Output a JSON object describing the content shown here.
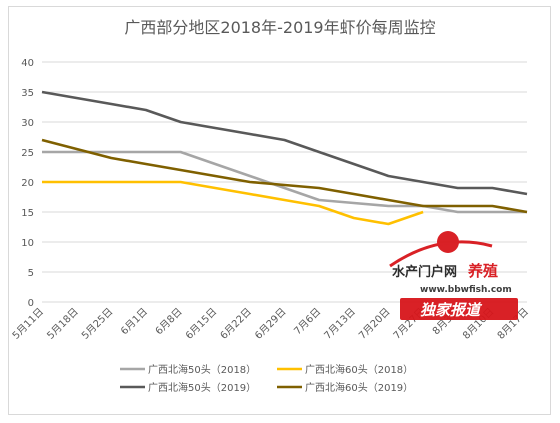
{
  "chart_data": {
    "type": "line",
    "title": "广西部分地区2018年-2019年虾价每周监控",
    "xlabel": "",
    "ylabel": "",
    "ylim": [
      0,
      40
    ],
    "yticks": [
      0,
      5,
      10,
      15,
      20,
      25,
      30,
      35,
      40
    ],
    "grid": true,
    "legend_position": "bottom",
    "categories": [
      "5月11日",
      "5月18日",
      "5月25日",
      "6月1日",
      "6月8日",
      "6月15日",
      "6月22日",
      "6月29日",
      "7月6日",
      "7月13日",
      "7月20日",
      "7月27日",
      "8月3日",
      "8月10日",
      "8月17日"
    ],
    "series": [
      {
        "name": "广西北海50头（2018）",
        "color": "#a6a6a6",
        "values": [
          25,
          25,
          25,
          25,
          25,
          23,
          21,
          19,
          17,
          16.5,
          16,
          16,
          15,
          15,
          15
        ]
      },
      {
        "name": "广西北海60头（2018）",
        "color": "#ffc000",
        "values": [
          20,
          20,
          20,
          20,
          20,
          19,
          18,
          17,
          16,
          14,
          13,
          15,
          null,
          null,
          null
        ]
      },
      {
        "name": "广西北海50头（2019）",
        "color": "#595959",
        "values": [
          35,
          34,
          33,
          32,
          30,
          29,
          28,
          27,
          25,
          23,
          21,
          20,
          19,
          19,
          18
        ]
      },
      {
        "name": "广西北海60头（2019）",
        "color": "#7f6000",
        "values": [
          27,
          25.5,
          24,
          23,
          22,
          21,
          20,
          19.5,
          19,
          18,
          17,
          16,
          16,
          16,
          15
        ]
      }
    ]
  },
  "watermark": {
    "line1": "水产门户网",
    "line1_accent": "养殖",
    "line2": "www.bbwfish.com",
    "line3": "独家报道"
  }
}
